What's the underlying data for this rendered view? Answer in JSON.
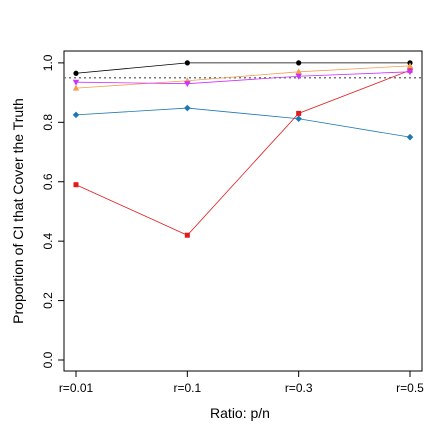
{
  "chart_data": {
    "type": "line",
    "x_label": "Ratio: p/n",
    "y_label": "Proportion of CI that Cover the Truth",
    "categories": [
      "r=0.01",
      "r=0.1",
      "r=0.3",
      "r=0.5"
    ],
    "series": [
      {
        "color": "#000000",
        "marker": "circle",
        "values": [
          0.965,
          1.0,
          1.0,
          1.0
        ]
      },
      {
        "color": "#e31a1c",
        "marker": "square",
        "values": [
          0.59,
          0.42,
          0.83,
          0.975
        ]
      },
      {
        "color": "#1f78b4",
        "marker": "diamond",
        "values": [
          0.825,
          0.848,
          0.812,
          0.75
        ]
      },
      {
        "color": "#f0a050",
        "marker": "triangle-up",
        "values": [
          0.915,
          0.94,
          0.97,
          0.99
        ]
      },
      {
        "color": "#cc33ff",
        "marker": "triangle-down",
        "values": [
          0.935,
          0.93,
          0.955,
          0.97
        ]
      }
    ],
    "reference_line": 0.95,
    "ylim": [
      -0.037,
      1.04
    ],
    "yticks": [
      {
        "value": 0,
        "label": "0.0"
      },
      0.2,
      0.4,
      0.6,
      0.8,
      {
        "value": 1,
        "label": "1.0"
      }
    ]
  }
}
